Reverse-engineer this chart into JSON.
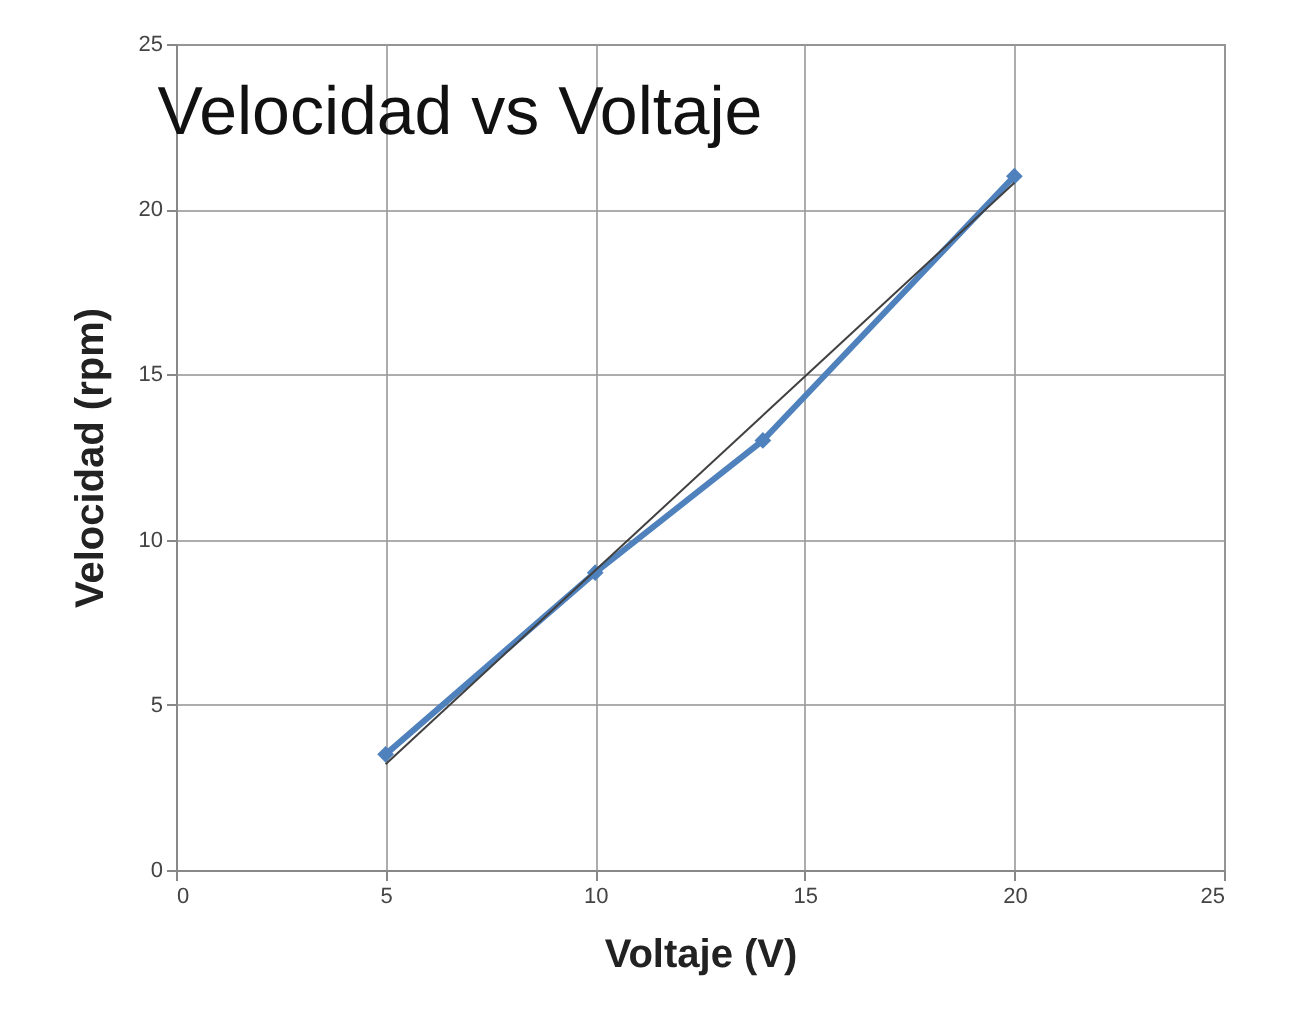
{
  "chart_data": {
    "type": "line",
    "title": "Velocidad vs Voltaje",
    "xlabel": "Voltaje (V)",
    "ylabel": "Velocidad (rpm)",
    "x": [
      5,
      10,
      14,
      20
    ],
    "series": [
      {
        "color": "#4f81bd",
        "values": [
          3.5,
          9,
          13,
          21
        ],
        "marker": "diamond"
      },
      {
        "type": "line",
        "color": "#404040",
        "x": [
          5,
          20
        ],
        "values": [
          3.2,
          20.8
        ],
        "marker": "none"
      }
    ],
    "xlim": [
      0,
      25
    ],
    "ylim": [
      0,
      25
    ],
    "xticks": [
      0,
      5,
      10,
      15,
      20,
      25
    ],
    "yticks": [
      0,
      5,
      10,
      15,
      20,
      25
    ],
    "grid": true
  }
}
